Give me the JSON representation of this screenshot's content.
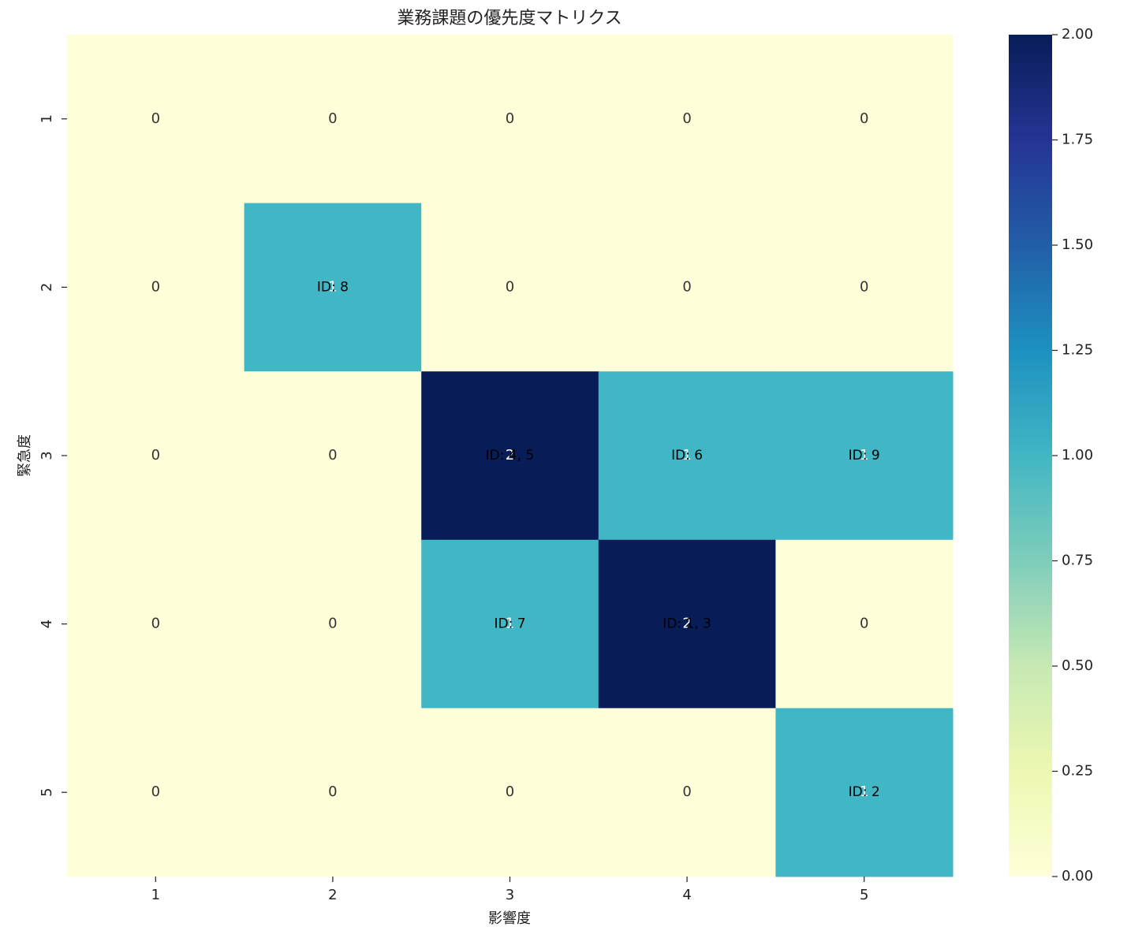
{
  "chart_data": {
    "type": "heatmap",
    "title": "業務課題の優先度マトリクス",
    "xlabel": "影響度",
    "ylabel": "緊急度",
    "x_categories": [
      1,
      2,
      3,
      4,
      5
    ],
    "y_categories": [
      1,
      2,
      3,
      4,
      5
    ],
    "values": [
      [
        0,
        0,
        0,
        0,
        0
      ],
      [
        0,
        1,
        0,
        0,
        0
      ],
      [
        0,
        0,
        2,
        1,
        1
      ],
      [
        0,
        0,
        1,
        2,
        0
      ],
      [
        0,
        0,
        0,
        0,
        1
      ]
    ],
    "id_labels": [
      [
        null,
        null,
        null,
        null,
        null
      ],
      [
        null,
        "ID: 8",
        null,
        null,
        null
      ],
      [
        null,
        null,
        "ID: 4, 5",
        "ID: 6",
        "ID: 9"
      ],
      [
        null,
        null,
        "ID: 7",
        "ID: 1, 3",
        null
      ],
      [
        null,
        null,
        null,
        null,
        "ID: 2"
      ]
    ],
    "clim": [
      0,
      2
    ],
    "cticks": [
      {
        "value": 0,
        "label": "0.00"
      },
      {
        "value": 0.25,
        "label": "0.25"
      },
      {
        "value": 0.5,
        "label": "0.50"
      },
      {
        "value": 0.75,
        "label": "0.75"
      },
      {
        "value": 1,
        "label": "1.00"
      },
      {
        "value": 1.25,
        "label": "1.25"
      },
      {
        "value": 1.5,
        "label": "1.50"
      },
      {
        "value": 1.75,
        "label": "1.75"
      },
      {
        "value": 2,
        "label": "2.00"
      }
    ],
    "colorscale": [
      "#ffffd9",
      "#edf8b1",
      "#c7e9b4",
      "#7fcdbb",
      "#41b6c4",
      "#1d91c0",
      "#225ea8",
      "#253494",
      "#081d58"
    ]
  }
}
